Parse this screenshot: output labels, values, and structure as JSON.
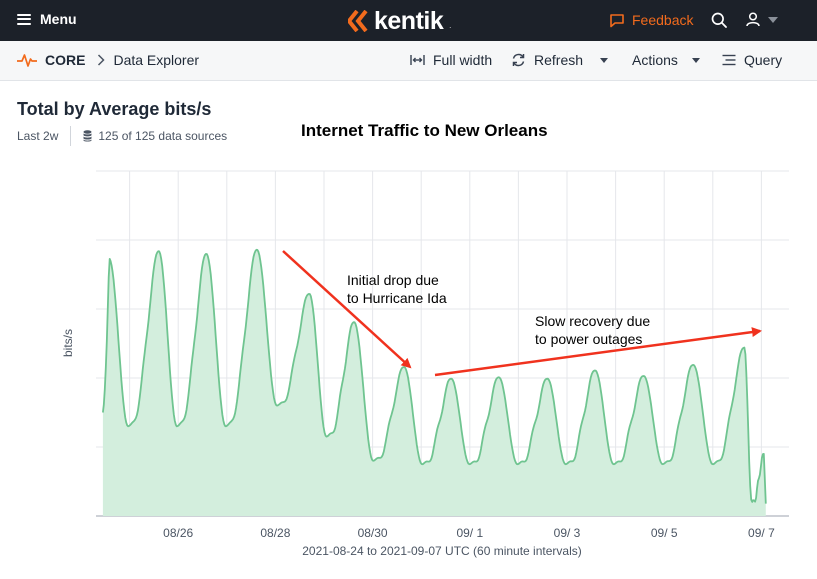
{
  "header": {
    "menu_label": "Menu",
    "logo_text": "kentik",
    "feedback_label": "Feedback",
    "icons": [
      "menu-icon",
      "kentik-logo-icon",
      "feedback-icon",
      "search-icon",
      "user-icon",
      "chevron-down-icon"
    ],
    "accent_color": "#f26b1d",
    "bg_color": "#1c2129"
  },
  "breadcrumb": {
    "root": "CORE",
    "separator": ">",
    "page": "Data Explorer"
  },
  "toolbar": {
    "full_width_label": "Full width",
    "refresh_label": "Refresh",
    "actions_label": "Actions",
    "query_label": "Query"
  },
  "panel": {
    "title": "Total by Average bits/s",
    "range": "Last 2w",
    "data_sources": "125 of 125 data sources"
  },
  "annotations": {
    "title": "Internet Traffic to New Orleans",
    "drop_line1": "Initial drop due",
    "drop_line2": "to Hurricane Ida",
    "recovery_line1": "Slow recovery due",
    "recovery_line2": "to power outages",
    "arrow_color": "#f0321e"
  },
  "chart_data": {
    "type": "area",
    "title": "Total by Average bits/s",
    "xlabel": "2021-08-24 to 2021-09-07 UTC (60 minute intervals)",
    "ylabel": "bits/s",
    "x_range": [
      0,
      14.1
    ],
    "x_ticks": [
      {
        "x": 2,
        "label": "08/26"
      },
      {
        "x": 4,
        "label": "08/28"
      },
      {
        "x": 6,
        "label": "08/30"
      },
      {
        "x": 8,
        "label": "09/ 1"
      },
      {
        "x": 10,
        "label": "09/ 3"
      },
      {
        "x": 12,
        "label": "09/ 5"
      },
      {
        "x": 14,
        "label": "09/ 7"
      }
    ],
    "ylim": [
      0,
      5
    ],
    "y_gridlines": [
      1,
      2,
      3,
      4,
      5
    ],
    "y_tick_labels": "not shown",
    "grid": true,
    "fill_color": "#d3eedd",
    "line_color": "#6fc490",
    "series": [
      {
        "days": [
          {
            "peak_day": 0.58,
            "min": 1.2,
            "peak": 3.73
          },
          {
            "peak_day": 1.6,
            "min": 1.3,
            "peak": 3.84
          },
          {
            "peak_day": 2.58,
            "min": 1.3,
            "peak": 3.8
          },
          {
            "peak_day": 3.62,
            "min": 1.3,
            "peak": 3.86
          },
          {
            "peak_day": 4.7,
            "min": 1.6,
            "peak": 3.22
          },
          {
            "peak_day": 5.62,
            "min": 1.15,
            "peak": 2.81
          },
          {
            "peak_day": 6.65,
            "min": 0.8,
            "peak": 2.16
          },
          {
            "peak_day": 7.62,
            "min": 0.75,
            "peak": 1.99
          },
          {
            "peak_day": 8.6,
            "min": 0.75,
            "peak": 2.01
          },
          {
            "peak_day": 9.6,
            "min": 0.75,
            "peak": 1.99
          },
          {
            "peak_day": 10.58,
            "min": 0.75,
            "peak": 2.11
          },
          {
            "peak_day": 11.58,
            "min": 0.75,
            "peak": 2.03
          },
          {
            "peak_day": 12.6,
            "min": 0.75,
            "peak": 2.19
          },
          {
            "peak_day": 13.65,
            "min": 0.75,
            "peak": 2.44
          },
          {
            "peak_day": 14.05,
            "min": 0.2,
            "peak": 0.9
          }
        ],
        "first_value": 1.5,
        "last_value": 0
      }
    ]
  }
}
